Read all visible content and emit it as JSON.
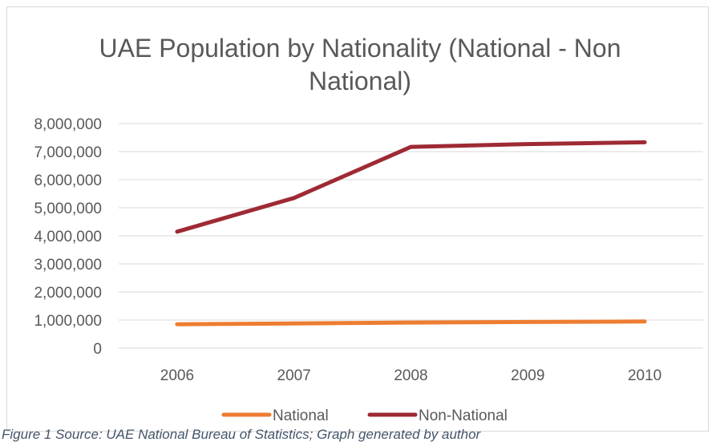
{
  "chart_data": {
    "type": "line",
    "title_line1": "UAE Population by Nationality (National - Non",
    "title_line2": "National)",
    "categories": [
      "2006",
      "2007",
      "2008",
      "2009",
      "2010"
    ],
    "series": [
      {
        "name": "National",
        "color": "#ed7d31",
        "values": [
          852000,
          880000,
          910000,
          930000,
          950000
        ]
      },
      {
        "name": "Non-National",
        "color": "#9e2a34",
        "values": [
          4150000,
          5350000,
          7170000,
          7270000,
          7330000
        ]
      }
    ],
    "y_ticks": [
      "0",
      "1,000,000",
      "2,000,000",
      "3,000,000",
      "4,000,000",
      "5,000,000",
      "6,000,000",
      "7,000,000",
      "8,000,000"
    ],
    "ylim": [
      0,
      8000000
    ],
    "grid": true,
    "legend_position": "bottom",
    "caption": "Figure 1 Source: UAE National Bureau of Statistics; Graph generated by author"
  }
}
